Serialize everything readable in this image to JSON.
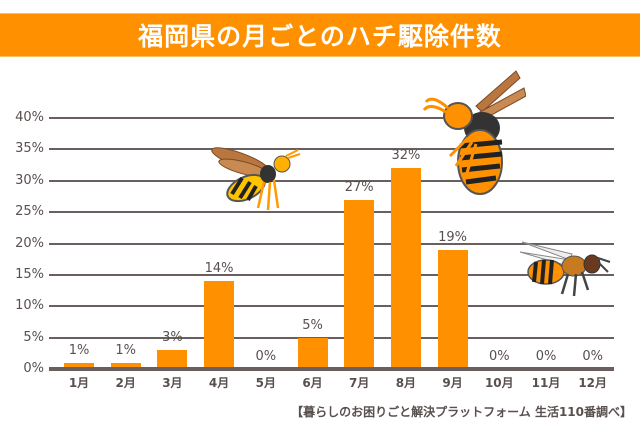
{
  "header": {
    "title": "福岡県の月ごとのハチ駆除件数"
  },
  "source": "【暮らしのお困りごと解決プラットフォーム 生活110番調べ】",
  "colors": {
    "bar": "#ff9000",
    "banner": "#ff9000",
    "grid": "#6a5f5f",
    "text": "#5a4f4f"
  },
  "chart_data": {
    "type": "bar",
    "title": "福岡県の月ごとのハチ駆除件数",
    "xlabel": "",
    "ylabel": "",
    "categories": [
      "1月",
      "2月",
      "3月",
      "4月",
      "5月",
      "6月",
      "7月",
      "8月",
      "9月",
      "10月",
      "11月",
      "12月"
    ],
    "values": [
      1,
      1,
      3,
      14,
      0,
      5,
      27,
      32,
      19,
      0,
      0,
      0
    ],
    "value_labels": [
      "1%",
      "1%",
      "3%",
      "14%",
      "0%",
      "5%",
      "27%",
      "32%",
      "19%",
      "0%",
      "0%",
      "0%"
    ],
    "yticks": [
      "0%",
      "5%",
      "10%",
      "15%",
      "20%",
      "25%",
      "30%",
      "35%",
      "40%"
    ],
    "ylim": [
      0,
      40
    ],
    "grid": true,
    "legend": null,
    "annotations": [
      "【暮らしのお困りごと解決プラットフォーム 生活110番調べ】"
    ],
    "decorations": [
      "hornet-illustration",
      "wasp-illustration",
      "bee-illustration"
    ]
  }
}
